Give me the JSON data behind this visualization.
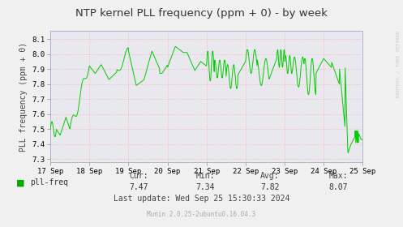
{
  "title": "NTP kernel PLL frequency (ppm + 0) - by week",
  "ylabel": "PLL frequency (ppm + 0)",
  "ylim": [
    7.28,
    8.155
  ],
  "yticks": [
    7.3,
    7.4,
    7.5,
    7.6,
    7.7,
    7.8,
    7.9,
    8.0,
    8.1
  ],
  "xlim": [
    0,
    8
  ],
  "xtick_labels": [
    "17 Sep",
    "18 Sep",
    "19 Sep",
    "20 Sep",
    "21 Sep",
    "22 Sep",
    "23 Sep",
    "24 Sep",
    "25 Sep"
  ],
  "xtick_positions": [
    0,
    1,
    2,
    3,
    4,
    5,
    6,
    7,
    8
  ],
  "line_color": "#00cc00",
  "bg_color": "#f0f0f0",
  "plot_bg_color": "#e8e8ee",
  "grid_color": "#ffaaaa",
  "legend_label": "pll-freq",
  "legend_color": "#00aa00",
  "stats_cur": "7.47",
  "stats_min": "7.34",
  "stats_avg": "7.82",
  "stats_max": "8.07",
  "last_update": "Last update: Wed Sep 25 15:30:33 2024",
  "munin_version": "Munin 2.0.25-2ubuntu0.16.04.3",
  "watermark": "RRDTOOL / TOBI OETIKER",
  "title_fontsize": 9.5,
  "label_fontsize": 7,
  "tick_fontsize": 6.5,
  "stats_fontsize": 7,
  "munin_fontsize": 5.5
}
